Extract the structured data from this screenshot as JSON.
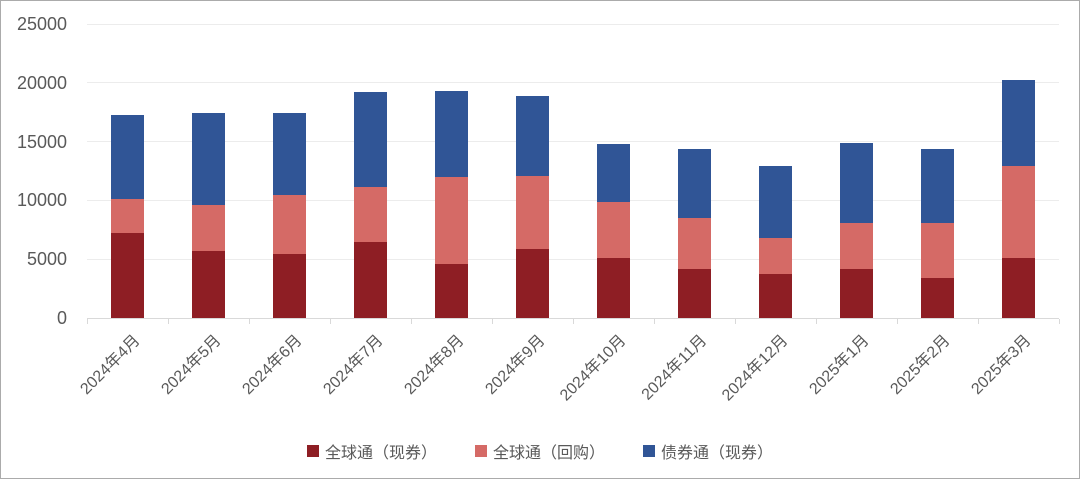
{
  "chart_data": {
    "type": "bar",
    "stacked": true,
    "title": "",
    "categories": [
      "2024年4月",
      "2024年5月",
      "2024年6月",
      "2024年7月",
      "2024年8月",
      "2024年9月",
      "2024年10月",
      "2024年11月",
      "2024年12月",
      "2025年1月",
      "2025年2月",
      "2025年3月"
    ],
    "series": [
      {
        "name": "全球通（现券）",
        "color": "#8E1E24",
        "values": [
          7200,
          5700,
          5400,
          6500,
          4550,
          5900,
          5100,
          4200,
          3700,
          4200,
          3400,
          5100
        ]
      },
      {
        "name": "全球通（回购）",
        "color": "#D56A66",
        "values": [
          2950,
          3900,
          5050,
          4650,
          7450,
          6150,
          4750,
          4300,
          3100,
          3850,
          4650,
          7800
        ]
      },
      {
        "name": "债券通（现券）",
        "color": "#305596",
        "values": [
          7150,
          7800,
          7000,
          8050,
          7300,
          6850,
          4950,
          5850,
          6100,
          6850,
          6300,
          7300
        ]
      }
    ],
    "totals": [
      17300,
      17400,
      17450,
      19200,
      19300,
      18900,
      14800,
      14350,
      12900,
      14900,
      14350,
      20200
    ],
    "ylim": [
      0,
      25000
    ],
    "yticks": [
      "0",
      "5000",
      "10000",
      "15000",
      "20000",
      "25000"
    ],
    "xlabel": "",
    "ylabel": "",
    "grid": true,
    "legend_position": "bottom"
  },
  "colors": {
    "background": "#FFFFFF",
    "border": "#ABABAB",
    "gridline": "#ECECEC",
    "axis_line": "#D9D9D9",
    "axis_text": "#595959"
  }
}
